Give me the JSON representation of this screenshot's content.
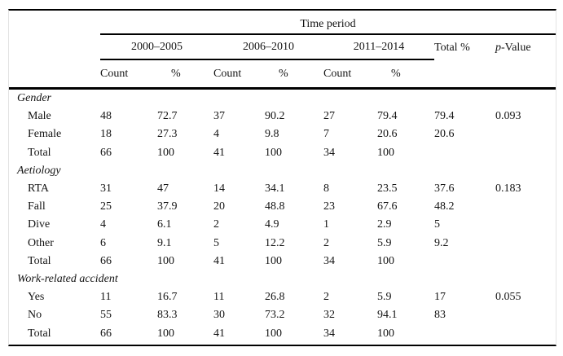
{
  "table": {
    "header": {
      "spanner": "Time period",
      "periods": [
        "2000–2005",
        "2006–2010",
        "2011–2014"
      ],
      "count_label": "Count",
      "pct_label": "%",
      "total_label": "Total %",
      "pvalue_prefix": "p",
      "pvalue_suffix": "-Value"
    },
    "sections": [
      {
        "title": "Gender",
        "rows": [
          {
            "label": "Male",
            "cells": [
              "48",
              "72.7",
              "37",
              "90.2",
              "27",
              "79.4",
              "79.4",
              "0.093"
            ]
          },
          {
            "label": "Female",
            "cells": [
              "18",
              "27.3",
              "4",
              "9.8",
              "7",
              "20.6",
              "20.6",
              ""
            ]
          },
          {
            "label": "Total",
            "cells": [
              "66",
              "100",
              "41",
              "100",
              "34",
              "100",
              "",
              ""
            ]
          }
        ]
      },
      {
        "title": "Aetiology",
        "rows": [
          {
            "label": "RTA",
            "cells": [
              "31",
              "47",
              "14",
              "34.1",
              "8",
              "23.5",
              "37.6",
              "0.183"
            ]
          },
          {
            "label": "Fall",
            "cells": [
              "25",
              "37.9",
              "20",
              "48.8",
              "23",
              "67.6",
              "48.2",
              ""
            ]
          },
          {
            "label": "Dive",
            "cells": [
              "4",
              "6.1",
              "2",
              "4.9",
              "1",
              "2.9",
              "5",
              ""
            ]
          },
          {
            "label": "Other",
            "cells": [
              "6",
              "9.1",
              "5",
              "12.2",
              "2",
              "5.9",
              "9.2",
              ""
            ]
          },
          {
            "label": "Total",
            "cells": [
              "66",
              "100",
              "41",
              "100",
              "34",
              "100",
              "",
              ""
            ]
          }
        ]
      },
      {
        "title": "Work-related accident",
        "rows": [
          {
            "label": "Yes",
            "cells": [
              "11",
              "16.7",
              "11",
              "26.8",
              "2",
              "5.9",
              "17",
              "0.055"
            ]
          },
          {
            "label": "No",
            "cells": [
              "55",
              "83.3",
              "30",
              "73.2",
              "32",
              "94.1",
              "83",
              ""
            ]
          },
          {
            "label": "Total",
            "cells": [
              "66",
              "100",
              "41",
              "100",
              "34",
              "100",
              "",
              ""
            ]
          }
        ]
      }
    ]
  }
}
